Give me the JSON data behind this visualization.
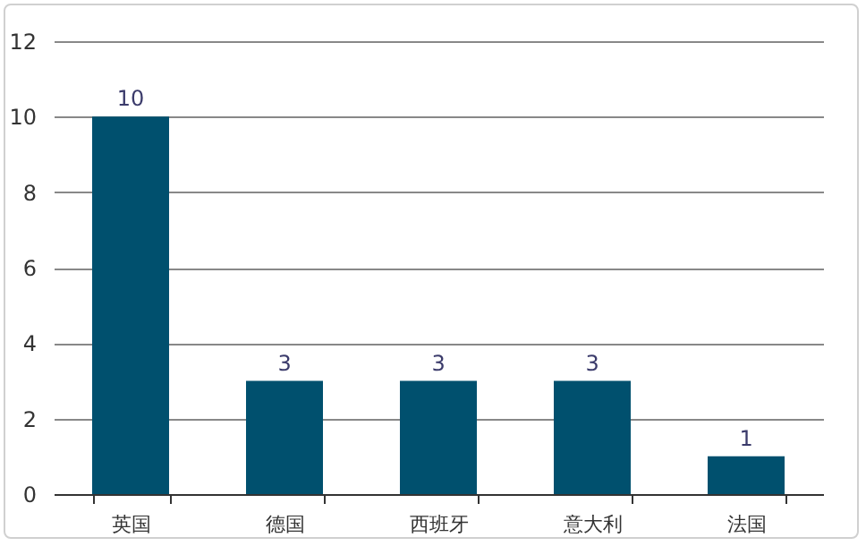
{
  "chart_data": {
    "type": "bar",
    "categories": [
      "英国",
      "德国",
      "西班牙",
      "意大利",
      "法国"
    ],
    "values": [
      10,
      3,
      3,
      3,
      1
    ],
    "color": "#00506e",
    "ylim": [
      0,
      12
    ],
    "yticks": [
      0,
      2,
      4,
      6,
      8,
      10,
      12
    ],
    "grid": "y",
    "data_labels": true
  }
}
